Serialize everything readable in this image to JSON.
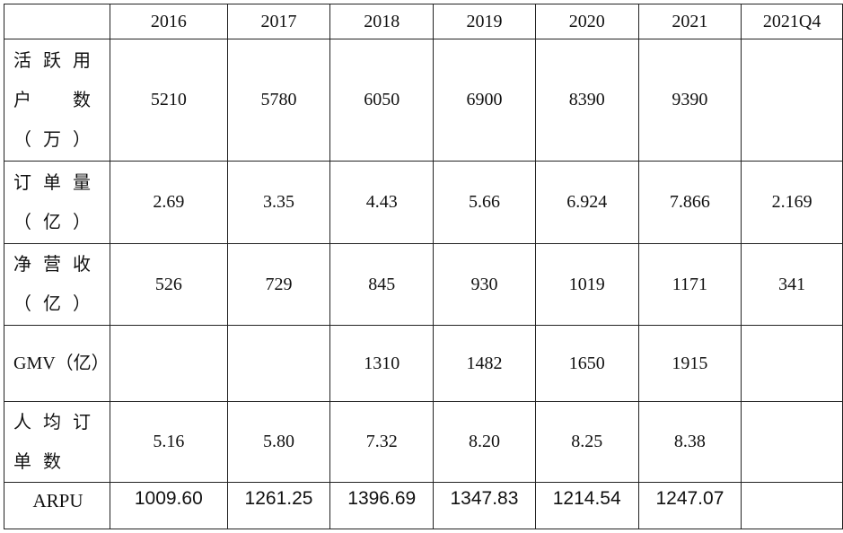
{
  "table": {
    "header": [
      null,
      "2016",
      "2017",
      "2018",
      "2019",
      "2020",
      "2021",
      "2021Q4"
    ],
    "rows": [
      [
        "活跃用户数（万）",
        "5210",
        "5780",
        "6050",
        "6900",
        "8390",
        "9390",
        null
      ],
      [
        "订单量（亿）",
        "2.69",
        "3.35",
        "4.43",
        "5.66",
        "6.924",
        "7.866",
        "2.169"
      ],
      [
        "净营收（亿）",
        "526",
        "729",
        "845",
        "930",
        "1019",
        "1171",
        "341"
      ],
      [
        "GMV（亿）",
        null,
        null,
        "1310",
        "1482",
        "1650",
        "1915",
        null
      ],
      [
        "人均订单数",
        "5.16",
        "5.80",
        "7.32",
        "8.20",
        "8.25",
        "8.38",
        null
      ],
      [
        "ARPU",
        "1009.60",
        "1261.25",
        "1396.69",
        "1347.83",
        "1214.54",
        "1247.07",
        null
      ]
    ]
  }
}
